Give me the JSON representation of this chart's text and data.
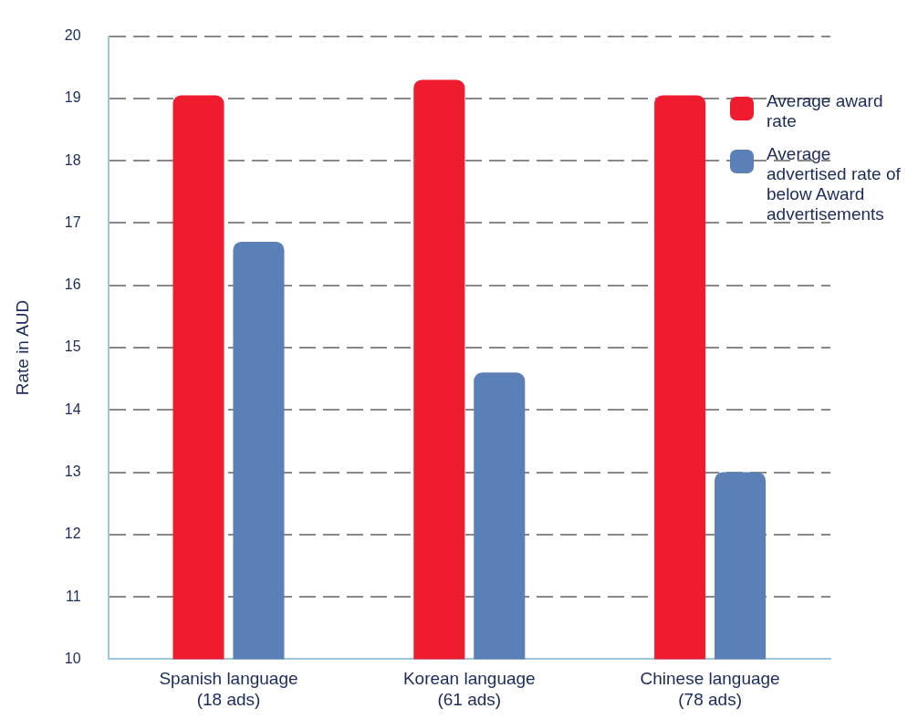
{
  "chart_data": {
    "type": "bar",
    "ylabel": "Rate in AUD",
    "categories": [
      "Spanish language\n(18 ads)",
      "Korean language\n(61 ads)",
      "Chinese language\n(78 ads)"
    ],
    "series": [
      {
        "name": "Average award rate",
        "color": "#ee1c2e",
        "values": [
          19.05,
          19.3,
          19.05
        ]
      },
      {
        "name": "Average advertised rate of below Award advertisements",
        "color": "#5b80b8",
        "values": [
          16.7,
          14.6,
          13.0
        ]
      }
    ],
    "ylim": [
      10,
      20
    ],
    "yticks": [
      10,
      11,
      12,
      13,
      14,
      15,
      16,
      17,
      18,
      19,
      20
    ],
    "grid": "y",
    "legend": "top right"
  }
}
